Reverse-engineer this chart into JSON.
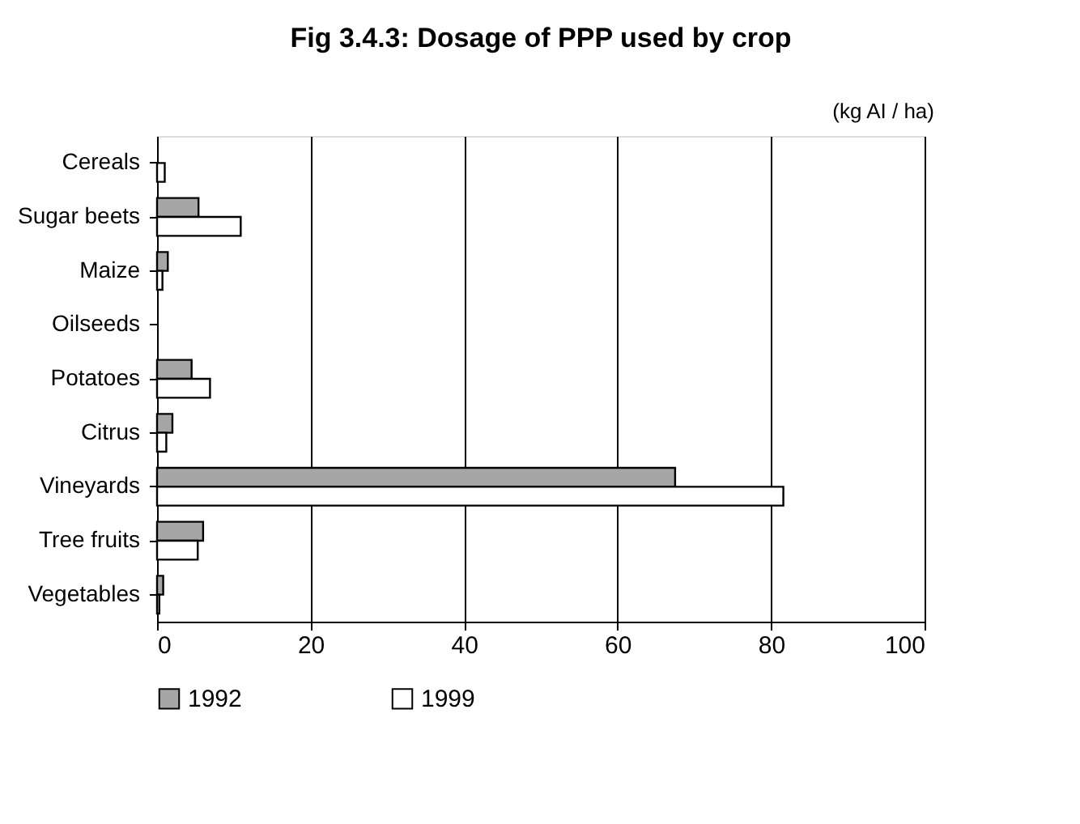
{
  "chart_data": {
    "type": "bar",
    "orientation": "horizontal",
    "title": "Fig 3.4.3: Dosage of PPP used by crop",
    "annotations": [
      "(kg AI / ha)"
    ],
    "categories": [
      "Cereals",
      "Sugar beets",
      "Maize",
      "Oilseeds",
      "Potatoes",
      "Citrus",
      "Vineyards",
      "Tree fruits",
      "Vegetables"
    ],
    "series": [
      {
        "name": "1992",
        "color": "#a6a6a6",
        "values": [
          null,
          5.4,
          1.4,
          null,
          4.5,
          2.0,
          67.5,
          6.0,
          0.8
        ]
      },
      {
        "name": "1999",
        "color": "#ffffff",
        "values": [
          1.0,
          10.9,
          0.7,
          null,
          6.9,
          1.2,
          81.6,
          5.3,
          0.3
        ]
      }
    ],
    "xlim": [
      0,
      100
    ],
    "xticks": [
      0,
      20,
      40,
      60,
      80,
      100
    ],
    "grid": "x",
    "legend": "bottom"
  }
}
